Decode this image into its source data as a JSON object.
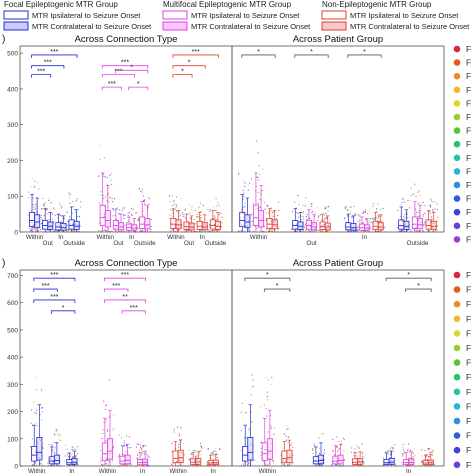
{
  "legend": {
    "groups": [
      {
        "title": "Focal Epileptogenic MTR Group",
        "color": "#1f2bd6",
        "entries": [
          {
            "label": "MTR Ipsilateral to Seizure Onset",
            "fill": "#ffffff"
          },
          {
            "label": "MTR Contralateral to Seizure Onset",
            "fill": "#c9cdf5"
          }
        ]
      },
      {
        "title": "Multifocal Epileptogenic MTR Group",
        "color": "#e040e6",
        "entries": [
          {
            "label": "MTR Ipsilateral to Seizure Onset",
            "fill": "#ffffff"
          },
          {
            "label": "MTR Contralateral to Seizure Onset",
            "fill": "#f6c8f8"
          }
        ]
      },
      {
        "title": "Non-Epileptogenic MTR Group",
        "color": "#e03c31",
        "entries": [
          {
            "label": "MTR Ipsilateral to Seizure Onset",
            "fill": "#ffffff"
          },
          {
            "label": "MTR Contralateral to Seizure Onset",
            "fill": "#f8c9c5"
          }
        ]
      }
    ]
  },
  "panel_letters": [
    ")",
    ")"
  ],
  "right_legend_letter": "F",
  "right_legend_colors": [
    "#d7263d",
    "#e8581c",
    "#f08a24",
    "#f2b92a",
    "#d9d92a",
    "#9ccc2b",
    "#5cc23a",
    "#2bbf6a",
    "#23c4a6",
    "#23b6d6",
    "#2a8fe0",
    "#2b5fe0",
    "#3f3fd9",
    "#6a3fd9",
    "#9b3fd9",
    "#c23fc9",
    "#e03fa0",
    "#e8426a",
    "#d7263d",
    "#e8581c"
  ],
  "chart_data": [
    {
      "type": "box",
      "panel": "top-left",
      "title": "Across Connection Type",
      "ylim": [
        0,
        520
      ],
      "yticks": [
        0,
        100,
        200,
        300,
        400,
        500
      ],
      "categories": [
        "Within",
        "Out",
        "In",
        "Outside"
      ],
      "groups": [
        {
          "group": "Focal Epileptogenic MTR Group",
          "color": "#1f2bd6",
          "boxes": [
            {
              "category": "Within",
              "side": "ipsilateral",
              "min": 0,
              "q1": 15,
              "median": 32,
              "q3": 55,
              "max": 105
            },
            {
              "category": "Within",
              "side": "contralateral",
              "min": 0,
              "q1": 12,
              "median": 28,
              "q3": 48,
              "max": 95
            },
            {
              "category": "Out",
              "side": "ipsilateral",
              "min": 0,
              "q1": 8,
              "median": 18,
              "q3": 32,
              "max": 65
            },
            {
              "category": "Out",
              "side": "contralateral",
              "min": 0,
              "q1": 7,
              "median": 16,
              "q3": 28,
              "max": 55
            },
            {
              "category": "In",
              "side": "ipsilateral",
              "min": 0,
              "q1": 6,
              "median": 14,
              "q3": 26,
              "max": 50
            },
            {
              "category": "In",
              "side": "contralateral",
              "min": 0,
              "q1": 5,
              "median": 12,
              "q3": 24,
              "max": 45
            },
            {
              "category": "Outside",
              "side": "ipsilateral",
              "min": 0,
              "q1": 8,
              "median": 18,
              "q3": 34,
              "max": 70
            },
            {
              "category": "Outside",
              "side": "contralateral",
              "min": 0,
              "q1": 7,
              "median": 16,
              "q3": 30,
              "max": 62
            }
          ]
        },
        {
          "group": "Multifocal Epileptogenic MTR Group",
          "color": "#e040e6",
          "boxes": [
            {
              "category": "Within",
              "side": "ipsilateral",
              "min": 0,
              "q1": 18,
              "median": 40,
              "q3": 75,
              "max": 165
            },
            {
              "category": "Within",
              "side": "contralateral",
              "min": 0,
              "q1": 14,
              "median": 32,
              "q3": 60,
              "max": 130
            },
            {
              "category": "Out",
              "side": "ipsilateral",
              "min": 0,
              "q1": 8,
              "median": 18,
              "q3": 32,
              "max": 62
            },
            {
              "category": "Out",
              "side": "contralateral",
              "min": 0,
              "q1": 6,
              "median": 14,
              "q3": 26,
              "max": 50
            },
            {
              "category": "In",
              "side": "ipsilateral",
              "min": 0,
              "q1": 5,
              "median": 12,
              "q3": 22,
              "max": 42
            },
            {
              "category": "In",
              "side": "contralateral",
              "min": 0,
              "q1": 5,
              "median": 11,
              "q3": 20,
              "max": 38
            },
            {
              "category": "Outside",
              "side": "ipsilateral",
              "min": 0,
              "q1": 10,
              "median": 22,
              "q3": 42,
              "max": 85
            },
            {
              "category": "Outside",
              "side": "contralateral",
              "min": 0,
              "q1": 9,
              "median": 20,
              "q3": 38,
              "max": 75
            }
          ]
        },
        {
          "group": "Non-Epileptogenic MTR Group",
          "color": "#e03c31",
          "boxes": [
            {
              "category": "Within",
              "side": "ipsilateral",
              "min": 0,
              "q1": 10,
              "median": 22,
              "q3": 38,
              "max": 65
            },
            {
              "category": "Within",
              "side": "contralateral",
              "min": 0,
              "q1": 9,
              "median": 20,
              "q3": 34,
              "max": 60
            },
            {
              "category": "Out",
              "side": "ipsilateral",
              "min": 0,
              "q1": 7,
              "median": 15,
              "q3": 28,
              "max": 50
            },
            {
              "category": "Out",
              "side": "contralateral",
              "min": 0,
              "q1": 6,
              "median": 14,
              "q3": 25,
              "max": 45
            },
            {
              "category": "In",
              "side": "ipsilateral",
              "min": 0,
              "q1": 7,
              "median": 16,
              "q3": 30,
              "max": 55
            },
            {
              "category": "In",
              "side": "contralateral",
              "min": 0,
              "q1": 6,
              "median": 14,
              "q3": 26,
              "max": 48
            },
            {
              "category": "Outside",
              "side": "ipsilateral",
              "min": 0,
              "q1": 8,
              "median": 18,
              "q3": 34,
              "max": 60
            },
            {
              "category": "Outside",
              "side": "contralateral",
              "min": 0,
              "q1": 7,
              "median": 16,
              "q3": 30,
              "max": 55
            }
          ]
        }
      ],
      "significance": [
        {
          "group": 0,
          "from": "Within",
          "to": "Outside",
          "y": 495,
          "label": "***"
        },
        {
          "group": 0,
          "from": "Within",
          "to": "In",
          "y": 465,
          "label": "***"
        },
        {
          "group": 0,
          "from": "Within",
          "to": "Out",
          "y": 440,
          "label": "***"
        },
        {
          "group": 1,
          "from": "Within",
          "to": "Outside",
          "y": 465,
          "label": "***"
        },
        {
          "group": 1,
          "from": "Within",
          "to": "In",
          "y": 440,
          "label": "***"
        },
        {
          "group": 1,
          "from": "Out",
          "to": "Outside",
          "y": 452,
          "label": "*"
        },
        {
          "group": 1,
          "from": "Within",
          "to": "Out",
          "y": 405,
          "label": "***"
        },
        {
          "group": 1,
          "from": "In",
          "to": "Outside",
          "y": 405,
          "label": "*"
        },
        {
          "group": 2,
          "from": "Within",
          "to": "Outside",
          "y": 495,
          "label": "***"
        },
        {
          "group": 2,
          "from": "Within",
          "to": "In",
          "y": 465,
          "label": "*"
        },
        {
          "group": 2,
          "from": "Within",
          "to": "Out",
          "y": 440,
          "label": "*"
        }
      ]
    },
    {
      "type": "box",
      "panel": "top-right",
      "title": "Across Patient Group",
      "ylim": [
        0,
        520
      ],
      "categories": [
        "Within",
        "Out",
        "In",
        "Outside"
      ],
      "significance": [
        {
          "category": "Within",
          "from_group": 0,
          "to_group": 2,
          "y": 495,
          "label": "*"
        },
        {
          "category": "Out",
          "from_group": 0,
          "to_group": 2,
          "y": 495,
          "label": "*"
        },
        {
          "category": "In",
          "from_group": 0,
          "to_group": 2,
          "y": 495,
          "label": "*"
        }
      ]
    },
    {
      "type": "box",
      "panel": "bottom-left",
      "title": "Across Connection Type",
      "ylim": [
        0,
        720
      ],
      "yticks": [
        0,
        100,
        200,
        300,
        400,
        500,
        600,
        700
      ],
      "categories": [
        "Within",
        "Out",
        "In"
      ],
      "groups": [
        {
          "group": "Focal Epileptogenic MTR Group",
          "color": "#1f2bd6",
          "boxes": [
            {
              "category": "Within",
              "side": "ipsilateral",
              "min": 0,
              "q1": 18,
              "median": 40,
              "q3": 72,
              "max": 150
            },
            {
              "category": "Within",
              "side": "contralateral",
              "min": 0,
              "q1": 22,
              "median": 50,
              "q3": 105,
              "max": 225
            },
            {
              "category": "Out",
              "side": "ipsilateral",
              "min": 0,
              "q1": 8,
              "median": 18,
              "q3": 34,
              "max": 70
            },
            {
              "category": "Out",
              "side": "contralateral",
              "min": 0,
              "q1": 8,
              "median": 20,
              "q3": 40,
              "max": 85
            },
            {
              "category": "In",
              "side": "ipsilateral",
              "min": 0,
              "q1": 5,
              "median": 12,
              "q3": 24,
              "max": 48
            },
            {
              "category": "In",
              "side": "contralateral",
              "min": 0,
              "q1": 6,
              "median": 14,
              "q3": 28,
              "max": 55
            }
          ]
        },
        {
          "group": "Multifocal Epileptogenic MTR Group",
          "color": "#e040e6",
          "boxes": [
            {
              "category": "Within",
              "side": "ipsilateral",
              "min": 0,
              "q1": 20,
              "median": 45,
              "q3": 85,
              "max": 175
            },
            {
              "category": "Within",
              "side": "contralateral",
              "min": 0,
              "q1": 25,
              "median": 55,
              "q3": 100,
              "max": 205
            },
            {
              "category": "Out",
              "side": "ipsilateral",
              "min": 0,
              "q1": 8,
              "median": 18,
              "q3": 36,
              "max": 75
            },
            {
              "category": "Out",
              "side": "contralateral",
              "min": 0,
              "q1": 8,
              "median": 20,
              "q3": 40,
              "max": 80
            },
            {
              "category": "In",
              "side": "ipsilateral",
              "min": 0,
              "q1": 5,
              "median": 12,
              "q3": 24,
              "max": 50
            },
            {
              "category": "In",
              "side": "contralateral",
              "min": 0,
              "q1": 5,
              "median": 13,
              "q3": 26,
              "max": 52
            }
          ]
        },
        {
          "group": "Non-Epileptogenic MTR Group",
          "color": "#e03c31",
          "boxes": [
            {
              "category": "Within",
              "side": "ipsilateral",
              "min": 0,
              "q1": 12,
              "median": 28,
              "q3": 55,
              "max": 90
            },
            {
              "category": "Within",
              "side": "contralateral",
              "min": 0,
              "q1": 12,
              "median": 30,
              "q3": 58,
              "max": 95
            },
            {
              "category": "Out",
              "side": "ipsilateral",
              "min": 0,
              "q1": 6,
              "median": 14,
              "q3": 26,
              "max": 50
            },
            {
              "category": "Out",
              "side": "contralateral",
              "min": 0,
              "q1": 6,
              "median": 15,
              "q3": 28,
              "max": 52
            },
            {
              "category": "In",
              "side": "ipsilateral",
              "min": 0,
              "q1": 5,
              "median": 11,
              "q3": 20,
              "max": 40
            },
            {
              "category": "In",
              "side": "contralateral",
              "min": 0,
              "q1": 5,
              "median": 12,
              "q3": 22,
              "max": 42
            }
          ]
        }
      ],
      "significance": [
        {
          "group": 0,
          "from": "Within",
          "to": "In",
          "y": 690,
          "label": "***"
        },
        {
          "group": 0,
          "from": "Within",
          "to": "Out",
          "y": 650,
          "label": "***"
        },
        {
          "group": 0,
          "from": "Within",
          "to": "In",
          "y": 610,
          "label": "***"
        },
        {
          "group": 0,
          "from": "Out",
          "to": "In",
          "y": 570,
          "label": "*"
        },
        {
          "group": 1,
          "from": "Within",
          "to": "In",
          "y": 690,
          "label": "***"
        },
        {
          "group": 1,
          "from": "Within",
          "to": "Out",
          "y": 650,
          "label": "***"
        },
        {
          "group": 1,
          "from": "Within",
          "to": "In",
          "y": 610,
          "label": "**"
        },
        {
          "group": 1,
          "from": "Out",
          "to": "In",
          "y": 570,
          "label": "***"
        }
      ]
    },
    {
      "type": "box",
      "panel": "bottom-right",
      "title": "Across Patient Group",
      "ylim": [
        0,
        720
      ],
      "categories": [
        "Within",
        "Out",
        "In"
      ],
      "significance": [
        {
          "category": "Within",
          "from_group": 0,
          "to_group": 2,
          "y": 690,
          "label": "*"
        },
        {
          "category": "Within",
          "from_group": 1,
          "to_group": 2,
          "y": 650,
          "label": "*"
        },
        {
          "category": "In",
          "from_group": 0,
          "to_group": 2,
          "y": 690,
          "label": "*"
        },
        {
          "category": "In",
          "from_group": 1,
          "to_group": 2,
          "y": 650,
          "label": "*"
        }
      ]
    }
  ]
}
